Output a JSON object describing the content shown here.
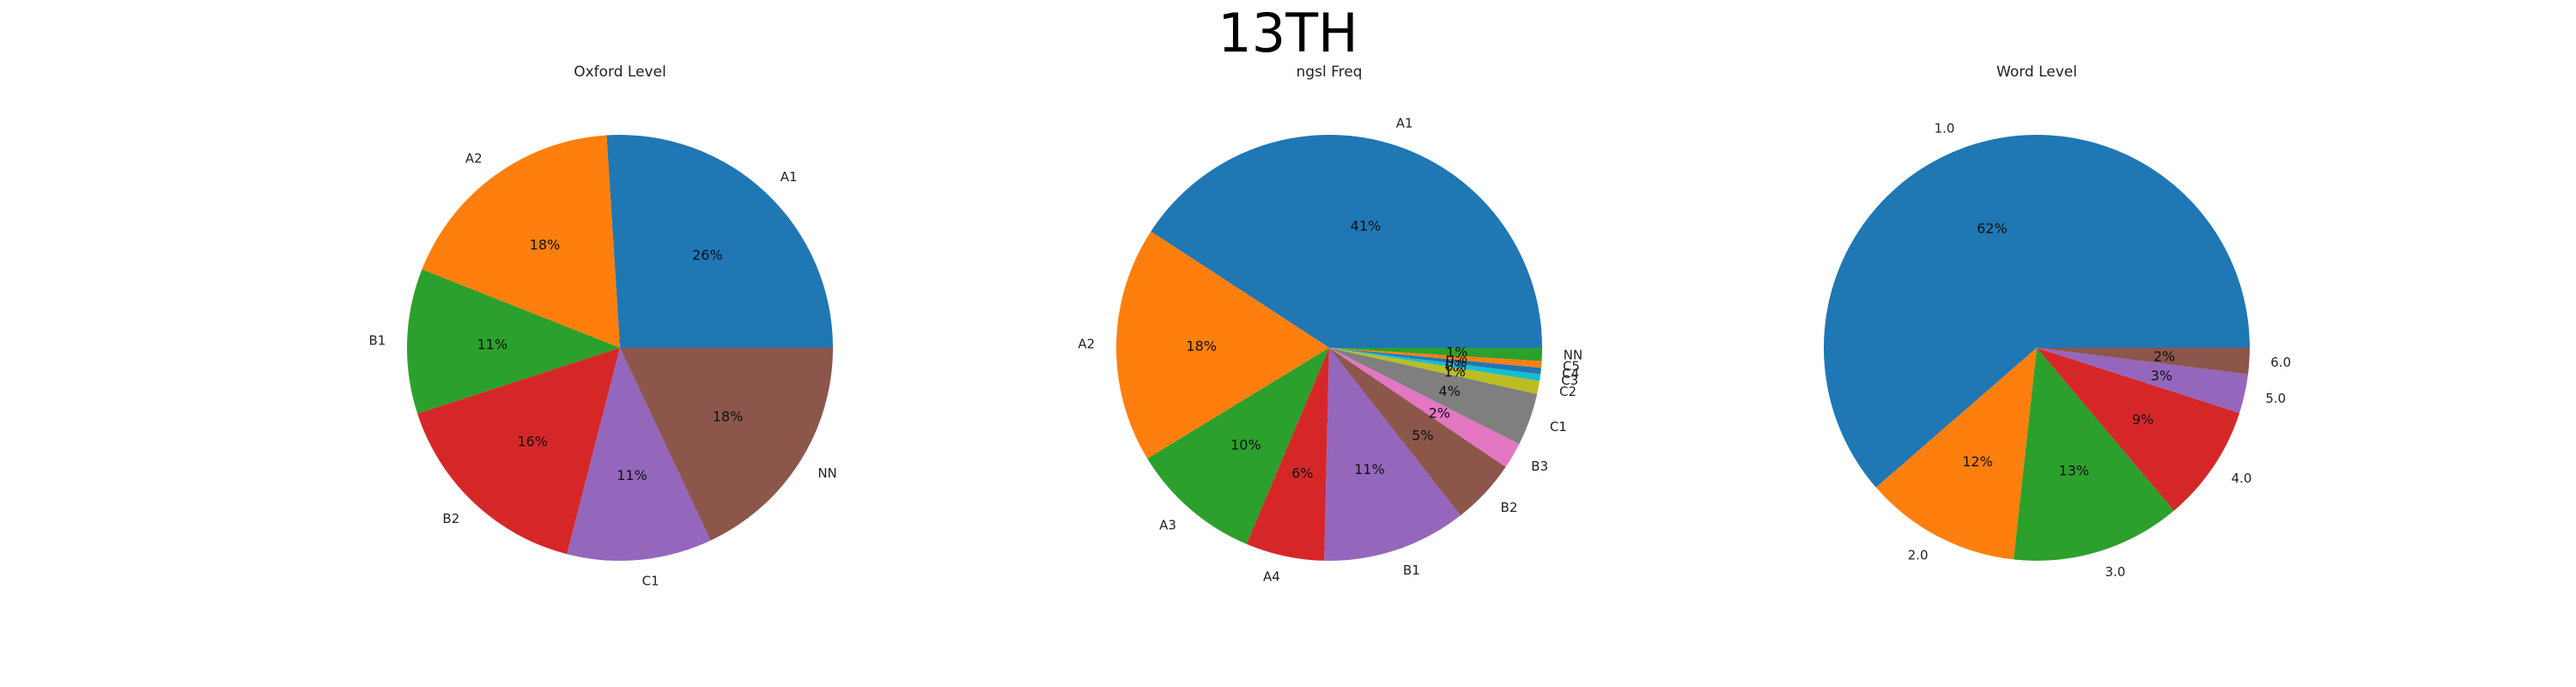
{
  "figure": {
    "suptitle": "13TH"
  },
  "chart_data": [
    {
      "type": "pie",
      "title": "Oxford Level",
      "categories": [
        "A1",
        "A2",
        "B1",
        "B2",
        "C1",
        "NN"
      ],
      "values": [
        26,
        18,
        11,
        16,
        11,
        18
      ],
      "percent_labels": [
        "26%",
        "18%",
        "11%",
        "16%",
        "11%",
        "18%"
      ],
      "colors": [
        "#1f77b4",
        "#ff7f0e",
        "#2ca02c",
        "#d62728",
        "#9467bd",
        "#8c564b"
      ],
      "start_angle_deg": 0,
      "direction": "counterclockwise"
    },
    {
      "type": "pie",
      "title": "ngsl Freq",
      "categories": [
        "A1",
        "A2",
        "A3",
        "A4",
        "B1",
        "B2",
        "B3",
        "C1",
        "C2",
        "C3",
        "C4",
        "C5",
        "NN"
      ],
      "values": [
        41,
        18,
        10,
        6,
        11,
        5,
        2,
        4,
        1,
        0.5,
        0.5,
        0.5,
        1
      ],
      "percent_labels": [
        "41%",
        "18%",
        "10%",
        "6%",
        "11%",
        "5%",
        "2%",
        "4%",
        "1%",
        "0%",
        "0%",
        "0%",
        "1%"
      ],
      "colors": [
        "#1f77b4",
        "#ff7f0e",
        "#2ca02c",
        "#d62728",
        "#9467bd",
        "#8c564b",
        "#e377c2",
        "#7f7f7f",
        "#bcbd22",
        "#17becf",
        "#1f77b4",
        "#ff7f0e",
        "#2ca02c"
      ],
      "start_angle_deg": 0,
      "direction": "counterclockwise"
    },
    {
      "type": "pie",
      "title": "Word Level",
      "categories": [
        "1.0",
        "2.0",
        "3.0",
        "4.0",
        "5.0",
        "6.0"
      ],
      "values": [
        62,
        12,
        13,
        9,
        3,
        2
      ],
      "percent_labels": [
        "62%",
        "12%",
        "13%",
        "9%",
        "3%",
        "2%"
      ],
      "colors": [
        "#1f77b4",
        "#ff7f0e",
        "#2ca02c",
        "#d62728",
        "#9467bd",
        "#8c564b"
      ],
      "start_angle_deg": 0,
      "direction": "counterclockwise"
    }
  ]
}
